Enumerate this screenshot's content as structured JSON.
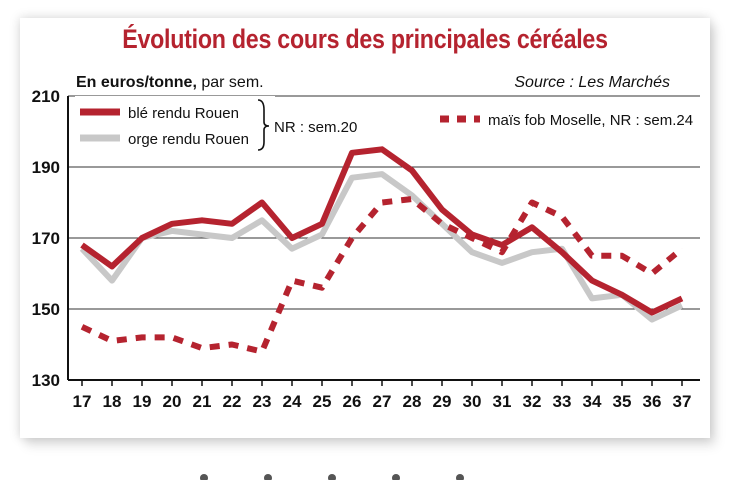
{
  "title": "Évolution des cours des principales céréales",
  "unit_bold": "En euros/tonne,",
  "unit_rest": " par sem.",
  "source": "Source : Les Marchés",
  "colors": {
    "ble": "#b5232f",
    "orge": "#c8c8c8",
    "mais": "#b5232f",
    "title": "#b5232f"
  },
  "legend": {
    "ble": "blé rendu Rouen",
    "orge": "orge rendu Rouen",
    "nr_ble_orge": "NR : sem.20",
    "mais": "maïs fob Moselle, NR : sem.24"
  },
  "chart_data": {
    "type": "line",
    "x": [
      17,
      18,
      19,
      20,
      21,
      22,
      23,
      24,
      25,
      26,
      27,
      28,
      29,
      30,
      31,
      32,
      33,
      34,
      35,
      36,
      37
    ],
    "ylim": [
      130,
      210
    ],
    "yticks": [
      130,
      150,
      170,
      190,
      210
    ],
    "grid": true,
    "series": [
      {
        "name": "blé rendu Rouen",
        "style": "solid",
        "values": [
          168,
          162,
          170,
          174,
          175,
          174,
          180,
          170,
          174,
          194,
          195,
          189,
          178,
          171,
          168,
          173,
          166,
          158,
          154,
          149,
          153
        ]
      },
      {
        "name": "orge rendu Rouen",
        "style": "solid",
        "values": [
          167,
          158,
          170,
          172,
          171,
          170,
          175,
          167,
          171,
          187,
          188,
          182,
          174,
          166,
          163,
          166,
          167,
          153,
          154,
          147,
          151
        ]
      },
      {
        "name": "maïs fob Moselle",
        "style": "dashed",
        "values": [
          145,
          141,
          142,
          142,
          139,
          140,
          138,
          158,
          156,
          170,
          180,
          181,
          174,
          170,
          166,
          180,
          176,
          165,
          165,
          160,
          167
        ]
      }
    ]
  }
}
